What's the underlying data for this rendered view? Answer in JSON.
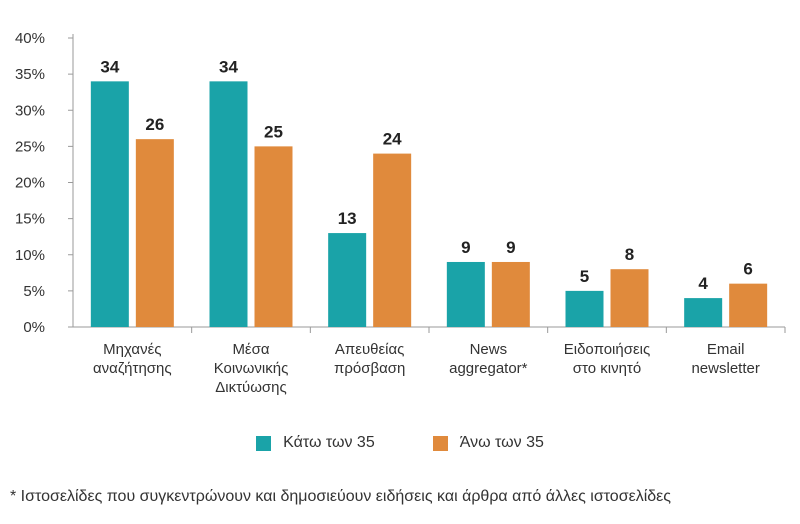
{
  "chart_data": {
    "type": "bar",
    "categories": [
      [
        "Μηχανές",
        "αναζήτησης"
      ],
      [
        "Μέσα",
        "Κοινωνικής",
        "Δικτύωσης"
      ],
      [
        "Απευθείας",
        "πρόσβαση"
      ],
      [
        "News",
        "aggregator*"
      ],
      [
        "Ειδοποιήσεις",
        "στο κινητό"
      ],
      [
        "Email",
        "newsletter"
      ]
    ],
    "series": [
      {
        "name": "Κάτω των 35",
        "color": "#1aa3a8",
        "values": [
          34,
          34,
          13,
          9,
          5,
          4
        ]
      },
      {
        "name": "Άνω των 35",
        "color": "#e08a3c",
        "values": [
          26,
          25,
          24,
          9,
          8,
          6
        ]
      }
    ],
    "ylim": [
      0,
      40
    ],
    "yticks": [
      "0%",
      "5%",
      "10%",
      "15%",
      "20%",
      "25%",
      "30%",
      "35%",
      "40%"
    ],
    "grid": false,
    "legend_position": "bottom-center"
  },
  "footnote": "* Ιστοσελίδες που συγκεντρώνουν και δημοσιεύουν ειδήσεις και άρθρα από άλλες ιστοσελίδες"
}
